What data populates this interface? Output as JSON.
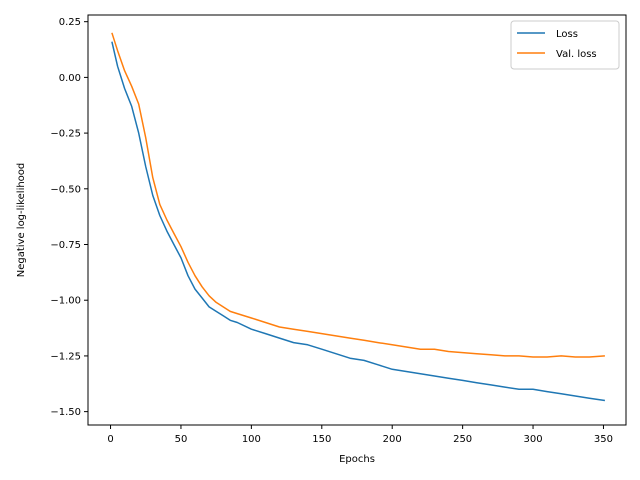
{
  "chart_data": {
    "type": "line",
    "xlabel": "Epochs",
    "ylabel": "Negative log-likelihood",
    "xlim": [
      -16,
      366
    ],
    "ylim": [
      -1.56,
      0.28
    ],
    "x_ticks": [
      0,
      50,
      100,
      150,
      200,
      250,
      300,
      350
    ],
    "y_ticks": [
      0.25,
      0.0,
      -0.25,
      -0.5,
      -0.75,
      -1.0,
      -1.25,
      -1.5
    ],
    "y_tick_labels": [
      "0.25",
      "0.00",
      "−0.25",
      "−0.50",
      "−0.75",
      "−1.00",
      "−1.25",
      "−1.50"
    ],
    "legend_position": "top-right",
    "grid": false,
    "series": [
      {
        "name": "Loss",
        "color": "#1f77b4",
        "points": [
          [
            1,
            0.16
          ],
          [
            5,
            0.05
          ],
          [
            10,
            -0.05
          ],
          [
            15,
            -0.13
          ],
          [
            20,
            -0.25
          ],
          [
            25,
            -0.4
          ],
          [
            30,
            -0.53
          ],
          [
            35,
            -0.62
          ],
          [
            40,
            -0.69
          ],
          [
            45,
            -0.75
          ],
          [
            50,
            -0.81
          ],
          [
            55,
            -0.89
          ],
          [
            60,
            -0.95
          ],
          [
            65,
            -0.99
          ],
          [
            70,
            -1.03
          ],
          [
            75,
            -1.05
          ],
          [
            80,
            -1.07
          ],
          [
            85,
            -1.09
          ],
          [
            90,
            -1.1
          ],
          [
            100,
            -1.13
          ],
          [
            110,
            -1.15
          ],
          [
            120,
            -1.17
          ],
          [
            130,
            -1.19
          ],
          [
            140,
            -1.2
          ],
          [
            150,
            -1.22
          ],
          [
            160,
            -1.24
          ],
          [
            170,
            -1.26
          ],
          [
            180,
            -1.27
          ],
          [
            190,
            -1.29
          ],
          [
            200,
            -1.31
          ],
          [
            210,
            -1.32
          ],
          [
            220,
            -1.33
          ],
          [
            230,
            -1.34
          ],
          [
            240,
            -1.35
          ],
          [
            250,
            -1.36
          ],
          [
            260,
            -1.37
          ],
          [
            270,
            -1.38
          ],
          [
            280,
            -1.39
          ],
          [
            290,
            -1.4
          ],
          [
            300,
            -1.4
          ],
          [
            310,
            -1.41
          ],
          [
            320,
            -1.42
          ],
          [
            330,
            -1.43
          ],
          [
            340,
            -1.44
          ],
          [
            351,
            -1.45
          ]
        ]
      },
      {
        "name": "Val. loss",
        "color": "#ff7f0e",
        "points": [
          [
            1,
            0.2
          ],
          [
            5,
            0.12
          ],
          [
            10,
            0.03
          ],
          [
            15,
            -0.04
          ],
          [
            20,
            -0.12
          ],
          [
            25,
            -0.27
          ],
          [
            30,
            -0.45
          ],
          [
            35,
            -0.57
          ],
          [
            40,
            -0.64
          ],
          [
            45,
            -0.7
          ],
          [
            50,
            -0.76
          ],
          [
            55,
            -0.83
          ],
          [
            60,
            -0.89
          ],
          [
            65,
            -0.94
          ],
          [
            70,
            -0.98
          ],
          [
            75,
            -1.01
          ],
          [
            80,
            -1.03
          ],
          [
            85,
            -1.05
          ],
          [
            90,
            -1.06
          ],
          [
            100,
            -1.08
          ],
          [
            110,
            -1.1
          ],
          [
            120,
            -1.12
          ],
          [
            130,
            -1.13
          ],
          [
            140,
            -1.14
          ],
          [
            150,
            -1.15
          ],
          [
            160,
            -1.16
          ],
          [
            170,
            -1.17
          ],
          [
            180,
            -1.18
          ],
          [
            190,
            -1.19
          ],
          [
            200,
            -1.2
          ],
          [
            210,
            -1.21
          ],
          [
            220,
            -1.22
          ],
          [
            230,
            -1.22
          ],
          [
            240,
            -1.23
          ],
          [
            250,
            -1.235
          ],
          [
            260,
            -1.24
          ],
          [
            270,
            -1.245
          ],
          [
            280,
            -1.25
          ],
          [
            290,
            -1.25
          ],
          [
            300,
            -1.255
          ],
          [
            310,
            -1.255
          ],
          [
            320,
            -1.25
          ],
          [
            330,
            -1.255
          ],
          [
            340,
            -1.255
          ],
          [
            351,
            -1.25
          ]
        ]
      }
    ]
  }
}
